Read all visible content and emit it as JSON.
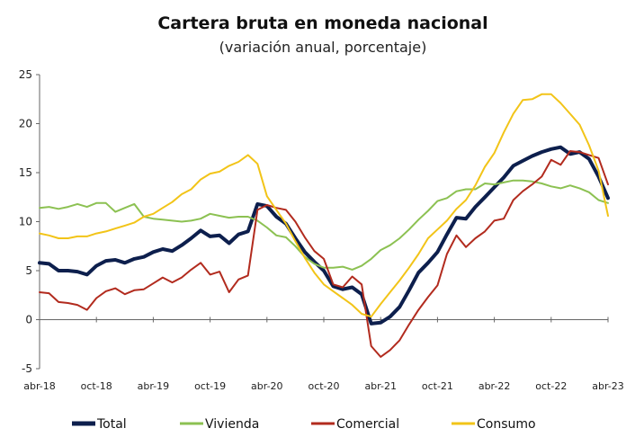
{
  "chart_data": {
    "type": "line",
    "title": "Cartera bruta en moneda nacional",
    "subtitle": "(variación anual, porcentaje)",
    "xlabel": "",
    "ylabel": "",
    "ylim": [
      -5,
      25
    ],
    "yticks": [
      "-5",
      "0",
      "5",
      "10",
      "15",
      "20",
      "25"
    ],
    "xticks": [
      "abr-18",
      "oct-18",
      "abr-19",
      "oct-19",
      "abr-20",
      "oct-20",
      "abr-21",
      "oct-21",
      "abr-22",
      "oct-22",
      "abr-23"
    ],
    "months": [
      "abr-18",
      "may-18",
      "jun-18",
      "jul-18",
      "ago-18",
      "sep-18",
      "oct-18",
      "nov-18",
      "dic-18",
      "ene-19",
      "feb-19",
      "mar-19",
      "abr-19",
      "may-19",
      "jun-19",
      "jul-19",
      "ago-19",
      "sep-19",
      "oct-19",
      "nov-19",
      "dic-19",
      "ene-20",
      "feb-20",
      "mar-20",
      "abr-20",
      "may-20",
      "jun-20",
      "jul-20",
      "ago-20",
      "sep-20",
      "oct-20",
      "nov-20",
      "dic-20",
      "ene-21",
      "feb-21",
      "mar-21",
      "abr-21",
      "may-21",
      "jun-21",
      "jul-21",
      "ago-21",
      "sep-21",
      "oct-21",
      "nov-21",
      "dic-21",
      "ene-22",
      "feb-22",
      "mar-22",
      "abr-22",
      "may-22",
      "jun-22",
      "jul-22",
      "ago-22",
      "sep-22",
      "oct-22",
      "nov-22",
      "dic-22",
      "ene-23",
      "feb-23",
      "mar-23",
      "abr-23"
    ],
    "legend_position": "bottom",
    "grid": false,
    "series": [
      {
        "name": "Total",
        "color": "#0d1f4d",
        "width": 4,
        "values": [
          5.8,
          5.7,
          5.0,
          5.0,
          4.9,
          4.6,
          5.5,
          6.0,
          6.1,
          5.8,
          6.2,
          6.4,
          6.9,
          7.2,
          7.0,
          7.6,
          8.3,
          9.1,
          8.5,
          8.6,
          7.8,
          8.7,
          9.0,
          11.8,
          11.6,
          10.5,
          9.8,
          8.3,
          6.9,
          5.9,
          5.0,
          3.4,
          3.1,
          3.3,
          2.6,
          -0.4,
          -0.3,
          0.3,
          1.3,
          3.0,
          4.8,
          5.8,
          6.9,
          8.7,
          10.4,
          10.3,
          11.5,
          12.5,
          13.5,
          14.5,
          15.7,
          16.2,
          16.7,
          17.1,
          17.4,
          17.6,
          16.9,
          17.1,
          16.4,
          14.6,
          12.4
        ]
      },
      {
        "name": "Vivienda",
        "color": "#8cc152",
        "width": 2,
        "values": [
          11.4,
          11.5,
          11.3,
          11.5,
          11.8,
          11.5,
          11.9,
          11.9,
          11.0,
          11.4,
          11.8,
          10.5,
          10.3,
          10.2,
          10.1,
          10.0,
          10.1,
          10.3,
          10.8,
          10.6,
          10.4,
          10.5,
          10.5,
          10.1,
          9.4,
          8.6,
          8.4,
          7.5,
          6.4,
          5.7,
          5.3,
          5.3,
          5.4,
          5.1,
          5.5,
          6.2,
          7.1,
          7.6,
          8.3,
          9.2,
          10.2,
          11.1,
          12.1,
          12.4,
          13.1,
          13.3,
          13.3,
          13.9,
          13.8,
          14.0,
          14.2,
          14.2,
          14.1,
          13.9,
          13.6,
          13.4,
          13.7,
          13.4,
          13.0,
          12.2,
          11.9
        ]
      },
      {
        "name": "Comercial",
        "color": "#b22b1e",
        "width": 2,
        "values": [
          2.8,
          2.7,
          1.8,
          1.7,
          1.5,
          1.0,
          2.2,
          2.9,
          3.2,
          2.6,
          3.0,
          3.1,
          3.7,
          4.3,
          3.8,
          4.3,
          5.1,
          5.8,
          4.6,
          4.9,
          2.8,
          4.1,
          4.5,
          11.2,
          11.7,
          11.4,
          11.2,
          10.0,
          8.4,
          7.0,
          6.2,
          3.6,
          3.3,
          4.4,
          3.6,
          -2.7,
          -3.8,
          -3.1,
          -2.1,
          -0.5,
          1.0,
          2.3,
          3.5,
          6.7,
          8.6,
          7.4,
          8.3,
          9.0,
          10.1,
          10.3,
          12.2,
          13.1,
          13.8,
          14.6,
          16.3,
          15.8,
          17.2,
          17.1,
          16.8,
          16.5,
          13.8
        ]
      },
      {
        "name": "Consumo",
        "color": "#f2c418",
        "width": 2,
        "values": [
          8.8,
          8.6,
          8.3,
          8.3,
          8.5,
          8.5,
          8.8,
          9.0,
          9.3,
          9.6,
          9.9,
          10.5,
          10.8,
          11.4,
          12.0,
          12.8,
          13.3,
          14.3,
          14.9,
          15.1,
          15.7,
          16.1,
          16.8,
          15.9,
          12.6,
          11.2,
          9.8,
          8.0,
          6.3,
          4.8,
          3.6,
          2.9,
          2.2,
          1.5,
          0.6,
          0.3,
          1.6,
          2.8,
          4.0,
          5.3,
          6.7,
          8.3,
          9.2,
          10.1,
          11.3,
          12.2,
          13.7,
          15.6,
          17.0,
          19.1,
          21.0,
          22.4,
          22.5,
          23.0,
          23.0,
          22.1,
          21.0,
          19.9,
          17.8,
          15.2,
          10.6
        ]
      }
    ]
  }
}
